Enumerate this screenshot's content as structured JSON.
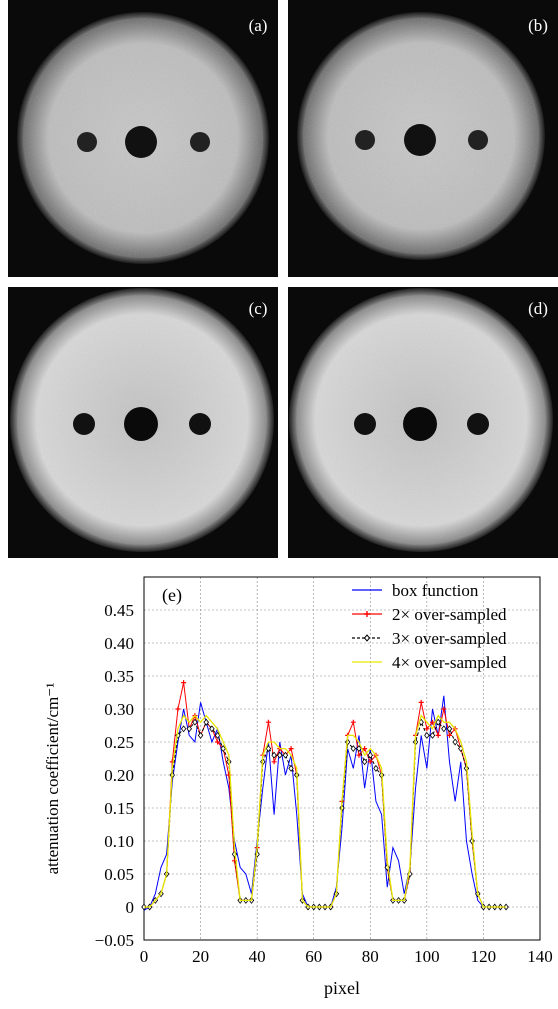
{
  "panels": [
    {
      "label": "(a)"
    },
    {
      "label": "(b)"
    },
    {
      "label": "(c)"
    },
    {
      "label": "(d)"
    }
  ],
  "chart_data": {
    "type": "line",
    "panel_label": "(e)",
    "x_label": "pixel",
    "y_label": "attenuation coefficient/cm⁻¹",
    "x": [
      0,
      2,
      4,
      6,
      8,
      10,
      12,
      14,
      16,
      18,
      20,
      22,
      24,
      26,
      28,
      30,
      32,
      34,
      36,
      38,
      40,
      42,
      44,
      46,
      48,
      50,
      52,
      54,
      56,
      58,
      60,
      62,
      64,
      66,
      68,
      70,
      72,
      74,
      76,
      78,
      80,
      82,
      84,
      86,
      88,
      90,
      92,
      94,
      96,
      98,
      100,
      102,
      104,
      106,
      108,
      110,
      112,
      114,
      116,
      118,
      120,
      122,
      124,
      126,
      128
    ],
    "xlim": [
      0,
      140
    ],
    "xticks": [
      0,
      20,
      40,
      60,
      80,
      100,
      120,
      140
    ],
    "ylim": [
      -0.05,
      0.5
    ],
    "yticks": [
      {
        "value": -0.05,
        "label": "−0.05"
      },
      0,
      0.05,
      {
        "value": 0.1,
        "label": "0.10"
      },
      0.15,
      {
        "value": 0.2,
        "label": "0.20"
      },
      0.25,
      {
        "value": 0.3,
        "label": "0.30"
      },
      0.35,
      {
        "value": 0.4,
        "label": "0.40"
      },
      0.45
    ],
    "grid": true,
    "legend": "upper right",
    "series": [
      {
        "name": "box function",
        "color": "#0000ff",
        "marker": "none",
        "values": [
          -0.005,
          0,
          0.02,
          0.06,
          0.08,
          0.19,
          0.25,
          0.3,
          0.26,
          0.25,
          0.31,
          0.28,
          0.25,
          0.27,
          0.22,
          0.18,
          0.1,
          0.06,
          0.05,
          0.02,
          0.1,
          0.18,
          0.25,
          0.14,
          0.25,
          0.2,
          0.23,
          0.14,
          0.02,
          0,
          0,
          0,
          0,
          0,
          0.03,
          0.12,
          0.24,
          0.21,
          0.26,
          0.18,
          0.24,
          0.16,
          0.14,
          0.03,
          0.09,
          0.07,
          0.02,
          0.06,
          0.18,
          0.26,
          0.21,
          0.3,
          0.26,
          0.32,
          0.22,
          0.16,
          0.22,
          0.1,
          0.05,
          0.01,
          0,
          0,
          0,
          0,
          0
        ]
      },
      {
        "name": "2× over-sampled",
        "color": "#ff0000",
        "marker": "plus",
        "values": [
          0,
          0,
          0.01,
          0.02,
          0.05,
          0.22,
          0.3,
          0.34,
          0.27,
          0.29,
          0.26,
          0.28,
          0.27,
          0.25,
          0.24,
          0.2,
          0.07,
          0.01,
          0.01,
          0.01,
          0.09,
          0.23,
          0.28,
          0.22,
          0.24,
          0.23,
          0.24,
          0.2,
          0.01,
          0,
          0,
          0,
          0,
          0,
          0.02,
          0.16,
          0.26,
          0.28,
          0.23,
          0.24,
          0.22,
          0.23,
          0.2,
          0.06,
          0.01,
          0.01,
          0.01,
          0.05,
          0.26,
          0.31,
          0.27,
          0.28,
          0.26,
          0.3,
          0.26,
          0.27,
          0.24,
          0.21,
          0.1,
          0.02,
          0,
          0,
          0,
          0,
          0
        ]
      },
      {
        "name": "3× over-sampled",
        "color": "#000000",
        "marker": "diamond",
        "values": [
          0,
          0,
          0.01,
          0.02,
          0.05,
          0.2,
          0.26,
          0.27,
          0.27,
          0.28,
          0.26,
          0.28,
          0.27,
          0.26,
          0.24,
          0.22,
          0.08,
          0.01,
          0.01,
          0.01,
          0.08,
          0.22,
          0.24,
          0.23,
          0.23,
          0.23,
          0.21,
          0.2,
          0.01,
          0,
          0,
          0,
          0,
          0,
          0.02,
          0.15,
          0.25,
          0.24,
          0.24,
          0.22,
          0.23,
          0.21,
          0.2,
          0.06,
          0.01,
          0.01,
          0.01,
          0.05,
          0.25,
          0.28,
          0.26,
          0.26,
          0.28,
          0.27,
          0.27,
          0.25,
          0.24,
          0.21,
          0.1,
          0.02,
          0,
          0,
          0,
          0,
          0
        ]
      },
      {
        "name": "4× over-sampled",
        "color": "#e6e600",
        "marker": "none",
        "values": [
          0,
          0,
          0.01,
          0.02,
          0.05,
          0.21,
          0.27,
          0.29,
          0.28,
          0.29,
          0.28,
          0.29,
          0.28,
          0.27,
          0.25,
          0.23,
          0.09,
          0.01,
          0.01,
          0.01,
          0.09,
          0.23,
          0.25,
          0.25,
          0.24,
          0.24,
          0.23,
          0.21,
          0.01,
          0,
          0,
          0,
          0,
          0,
          0.02,
          0.16,
          0.26,
          0.26,
          0.25,
          0.23,
          0.24,
          0.23,
          0.21,
          0.07,
          0.01,
          0.01,
          0.01,
          0.06,
          0.26,
          0.29,
          0.28,
          0.27,
          0.29,
          0.28,
          0.28,
          0.27,
          0.25,
          0.22,
          0.11,
          0.02,
          0,
          0,
          0,
          0,
          0
        ]
      }
    ]
  }
}
